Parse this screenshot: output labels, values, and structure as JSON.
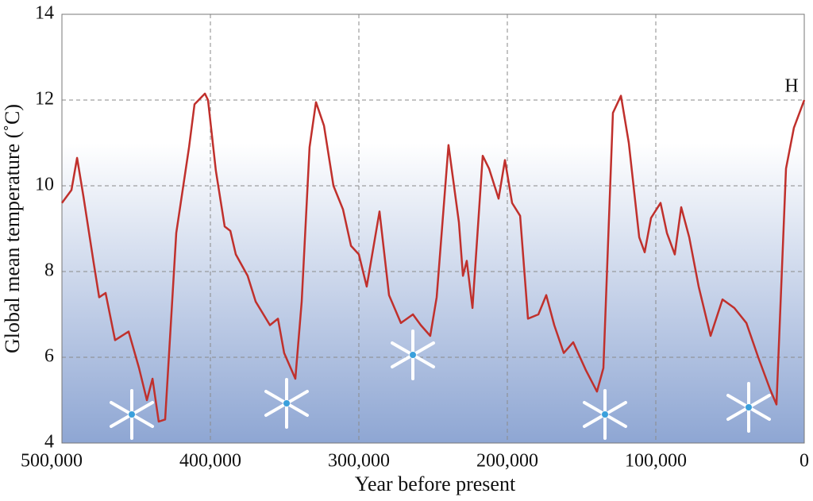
{
  "chart_data": {
    "type": "line",
    "x_label": "Year before present",
    "y_label": "Global mean temperature (˚C)",
    "annotation": "H",
    "color": "#c0302c",
    "grid": true,
    "xlim": [
      500000,
      0
    ],
    "xticks": [
      {
        "value": 500000,
        "label": "500,000"
      },
      {
        "value": 400000,
        "label": "400,000"
      },
      {
        "value": 300000,
        "label": "300,000"
      },
      {
        "value": 200000,
        "label": "200,000"
      },
      {
        "value": 100000,
        "label": "100,000"
      },
      0
    ],
    "ylim": [
      4,
      14
    ],
    "yticks": [
      4,
      6,
      8,
      10,
      12,
      14
    ],
    "x": [
      500000,
      493600,
      489800,
      485500,
      478600,
      474900,
      470600,
      464200,
      455100,
      448100,
      442800,
      439000,
      434800,
      430500,
      423000,
      414400,
      410700,
      403700,
      401600,
      396300,
      390400,
      386600,
      382900,
      374900,
      369500,
      359900,
      354500,
      350300,
      342800,
      338500,
      333200,
      328900,
      323500,
      317100,
      310700,
      305300,
      300000,
      294700,
      286100,
      279700,
      271700,
      263600,
      258300,
      251900,
      247600,
      239600,
      232600,
      229900,
      227300,
      223500,
      216600,
      212300,
      205900,
      201600,
      196800,
      191400,
      186100,
      179100,
      173800,
      168400,
      162000,
      155600,
      147100,
      139600,
      135300,
      128900,
      123500,
      118200,
      111200,
      107500,
      103200,
      96800,
      92500,
      87200,
      82900,
      77500,
      71100,
      63100,
      55100,
      47100,
      39000,
      31000,
      23000,
      18700,
      12300,
      7000,
      0
    ],
    "values": [
      9.6,
      9.9,
      10.65,
      9.75,
      8.2,
      7.4,
      7.5,
      6.4,
      6.6,
      5.75,
      5.0,
      5.5,
      4.5,
      4.55,
      8.9,
      10.9,
      11.9,
      12.15,
      12.0,
      10.35,
      9.05,
      8.95,
      8.4,
      7.9,
      7.3,
      6.75,
      6.9,
      6.1,
      5.5,
      7.3,
      10.9,
      11.95,
      11.4,
      10.0,
      9.45,
      8.6,
      8.4,
      7.65,
      9.4,
      7.45,
      6.8,
      7.0,
      6.75,
      6.5,
      7.4,
      10.95,
      9.15,
      7.9,
      8.25,
      7.15,
      10.7,
      10.4,
      9.7,
      10.6,
      9.6,
      9.3,
      6.9,
      7.0,
      7.45,
      6.75,
      6.1,
      6.35,
      5.7,
      5.2,
      5.75,
      11.7,
      12.1,
      11.0,
      8.8,
      8.45,
      9.25,
      9.6,
      8.9,
      8.4,
      9.5,
      8.8,
      7.65,
      6.5,
      7.35,
      7.15,
      6.8,
      6.0,
      5.25,
      4.9,
      10.4,
      11.35,
      12.0
    ]
  }
}
